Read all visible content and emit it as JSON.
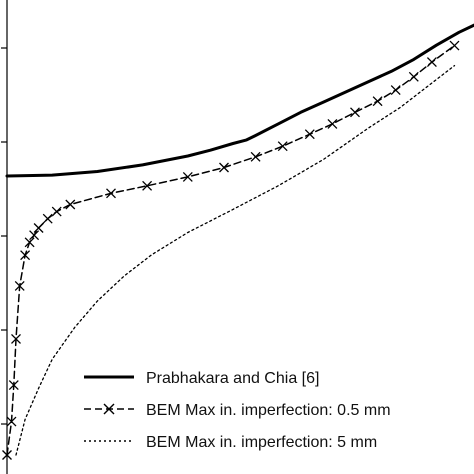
{
  "chart_data": {
    "type": "line",
    "title": "",
    "xlabel": "",
    "ylabel": "",
    "xlim": [
      0,
      1
    ],
    "ylim": [
      0,
      1
    ],
    "grid": false,
    "legend_position": "bottom-right",
    "series": [
      {
        "name": "Prabhakara and Chia [6]",
        "style": "solid",
        "color": "#000000",
        "marker": "none",
        "points": [
          [
            0.0,
            0.627
          ],
          [
            0.1,
            0.629
          ],
          [
            0.2,
            0.637
          ],
          [
            0.3,
            0.652
          ],
          [
            0.4,
            0.672
          ],
          [
            0.45,
            0.685
          ],
          [
            0.5,
            0.7
          ],
          [
            0.53,
            0.708
          ],
          [
            0.55,
            0.718
          ],
          [
            0.6,
            0.744
          ],
          [
            0.65,
            0.77
          ],
          [
            0.7,
            0.793
          ],
          [
            0.75,
            0.816
          ],
          [
            0.8,
            0.839
          ],
          [
            0.85,
            0.862
          ],
          [
            0.9,
            0.889
          ],
          [
            0.95,
            0.921
          ],
          [
            1.0,
            0.95
          ],
          [
            1.05,
            0.974
          ]
        ]
      },
      {
        "name": "BEM Max in. imperfection: 0.5 mm",
        "style": "dashed",
        "color": "#000000",
        "marker": "x",
        "points": [
          [
            0.0,
            0.0
          ],
          [
            0.01,
            0.075
          ],
          [
            0.015,
            0.157
          ],
          [
            0.02,
            0.261
          ],
          [
            0.028,
            0.38
          ],
          [
            0.04,
            0.449
          ],
          [
            0.05,
            0.478
          ],
          [
            0.06,
            0.494
          ],
          [
            0.07,
            0.51
          ],
          [
            0.09,
            0.531
          ],
          [
            0.11,
            0.547
          ],
          [
            0.14,
            0.563
          ],
          [
            0.23,
            0.588
          ],
          [
            0.31,
            0.605
          ],
          [
            0.4,
            0.625
          ],
          [
            0.48,
            0.646
          ],
          [
            0.55,
            0.67
          ],
          [
            0.61,
            0.694
          ],
          [
            0.67,
            0.721
          ],
          [
            0.72,
            0.744
          ],
          [
            0.77,
            0.77
          ],
          [
            0.82,
            0.795
          ],
          [
            0.86,
            0.82
          ],
          [
            0.9,
            0.85
          ],
          [
            0.94,
            0.883
          ],
          [
            0.99,
            0.92
          ]
        ]
      },
      {
        "name": "BEM Max in. imperfection: 5 mm",
        "style": "dotted",
        "color": "#000000",
        "marker": "none",
        "points": [
          [
            0.02,
            0.0
          ],
          [
            0.04,
            0.08
          ],
          [
            0.07,
            0.15
          ],
          [
            0.1,
            0.215
          ],
          [
            0.15,
            0.287
          ],
          [
            0.2,
            0.346
          ],
          [
            0.26,
            0.403
          ],
          [
            0.32,
            0.45
          ],
          [
            0.4,
            0.5
          ],
          [
            0.5,
            0.552
          ],
          [
            0.6,
            0.605
          ],
          [
            0.7,
            0.664
          ],
          [
            0.8,
            0.735
          ],
          [
            0.87,
            0.781
          ],
          [
            0.93,
            0.828
          ],
          [
            0.99,
            0.875
          ]
        ]
      }
    ]
  },
  "legend": {
    "items": [
      {
        "label": "Prabhakara and Chia [6]"
      },
      {
        "label": "BEM Max in. imperfection: 0.5 mm"
      },
      {
        "label": "BEM Max in. imperfection: 5 mm"
      }
    ]
  }
}
